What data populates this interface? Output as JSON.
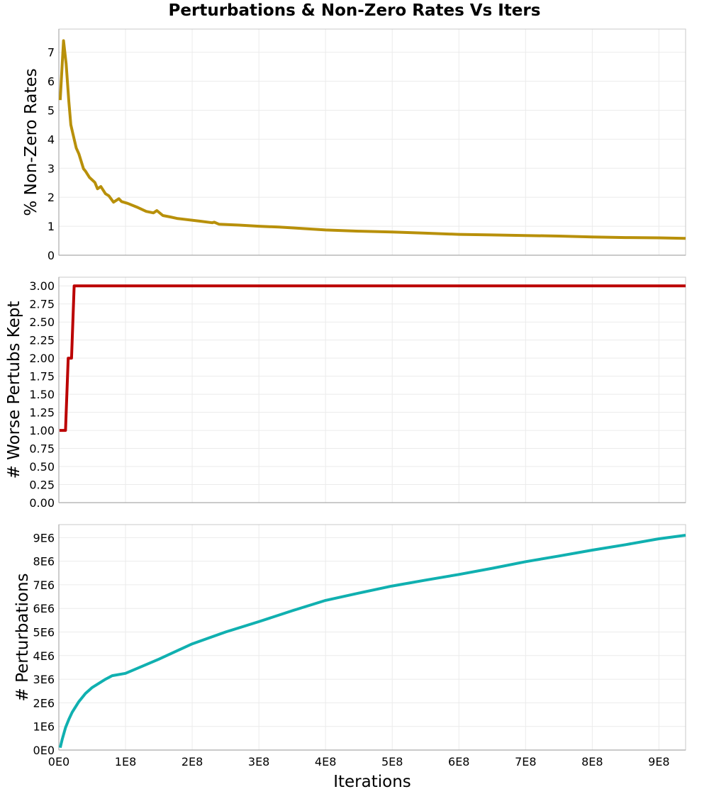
{
  "figure": {
    "title": "Perturbations & Non-Zero Rates Vs Iters",
    "xlabel": "Iterations",
    "x_tick_labels": [
      "0E0",
      "1E8",
      "2E8",
      "3E8",
      "4E8",
      "5E8",
      "6E8",
      "7E8",
      "8E8",
      "9E8"
    ]
  },
  "chart_data": [
    {
      "type": "line",
      "title": "",
      "xlabel": "",
      "ylabel": "% Non-Zero Rates",
      "color": "#B8900A",
      "xlim": [
        0,
        940000000.0
      ],
      "ylim": [
        0,
        7.8
      ],
      "yticks": [
        0,
        1,
        2,
        3,
        4,
        5,
        6,
        7
      ],
      "ytick_labels": [
        "0",
        "1",
        "2",
        "3",
        "4",
        "5",
        "6",
        "7"
      ],
      "grid": true,
      "x": [
        2000000.0,
        7000000.0,
        11000000.0,
        15000000.0,
        18000000.0,
        21000000.0,
        26000000.0,
        30000000.0,
        37000000.0,
        40000000.0,
        46000000.0,
        54000000.0,
        58000000.0,
        63000000.0,
        70000000.0,
        75000000.0,
        82000000.0,
        90000000.0,
        94000000.0,
        103000000.0,
        117000000.0,
        131000000.0,
        142000000.0,
        147000000.0,
        156000000.0,
        167000000.0,
        177000000.0,
        213000000.0,
        230000000.0,
        233000000.0,
        240000000.0,
        270000000.0,
        300000000.0,
        330000000.0,
        360000000.0,
        400000000.0,
        450000000.0,
        500000000.0,
        550000000.0,
        600000000.0,
        650000000.0,
        700000000.0,
        750000000.0,
        800000000.0,
        850000000.0,
        900000000.0,
        940000000.0
      ],
      "y": [
        5.35,
        7.4,
        6.6,
        5.3,
        4.5,
        4.2,
        3.7,
        3.5,
        2.98,
        2.9,
        2.68,
        2.51,
        2.29,
        2.37,
        2.12,
        2.05,
        1.83,
        1.95,
        1.85,
        1.79,
        1.66,
        1.51,
        1.46,
        1.54,
        1.37,
        1.32,
        1.27,
        1.17,
        1.12,
        1.14,
        1.07,
        1.04,
        1.0,
        0.97,
        0.93,
        0.87,
        0.83,
        0.8,
        0.76,
        0.72,
        0.7,
        0.68,
        0.66,
        0.63,
        0.61,
        0.6,
        0.58
      ]
    },
    {
      "type": "line",
      "title": "",
      "xlabel": "",
      "ylabel": "# Worse Pertubs Kept",
      "color": "#BB0000",
      "xlim": [
        0,
        940000000.0
      ],
      "ylim": [
        0,
        3.12
      ],
      "yticks": [
        0,
        0.25,
        0.5,
        0.75,
        1.0,
        1.25,
        1.5,
        1.75,
        2.0,
        2.25,
        2.5,
        2.75,
        3.0
      ],
      "ytick_labels": [
        "0.00",
        "0.25",
        "0.50",
        "0.75",
        "1.00",
        "1.25",
        "1.50",
        "1.75",
        "2.00",
        "2.25",
        "2.50",
        "2.75",
        "3.00"
      ],
      "grid": true,
      "x": [
        1000000.0,
        10000000.0,
        14000000.0,
        19000000.0,
        23000000.0,
        940000000.0
      ],
      "y": [
        1,
        1,
        2,
        2,
        3,
        3
      ]
    },
    {
      "type": "line",
      "title": "",
      "xlabel": "Iterations",
      "ylabel": "# Perturbations",
      "color": "#10B0B0",
      "xlim": [
        0,
        940000000.0
      ],
      "ylim": [
        0,
        9550000.0
      ],
      "yticks": [
        0,
        1000000.0,
        2000000.0,
        3000000.0,
        4000000.0,
        5000000.0,
        6000000.0,
        7000000.0,
        8000000.0,
        9000000.0
      ],
      "ytick_labels": [
        "0E0",
        "1E6",
        "2E6",
        "3E6",
        "4E6",
        "5E6",
        "6E6",
        "7E6",
        "8E6",
        "9E6"
      ],
      "grid": true,
      "x": [
        2000000.0,
        5000000.0,
        10000000.0,
        15000000.0,
        20000000.0,
        30000000.0,
        40000000.0,
        50000000.0,
        70000000.0,
        80000000.0,
        100000000.0,
        125000000.0,
        150000000.0,
        200000000.0,
        250000000.0,
        300000000.0,
        350000000.0,
        400000000.0,
        450000000.0,
        500000000.0,
        550000000.0,
        600000000.0,
        650000000.0,
        700000000.0,
        750000000.0,
        800000000.0,
        850000000.0,
        900000000.0,
        940000000.0
      ],
      "y": [
        100000.0,
        450000.0,
        950000.0,
        1300000.0,
        1600000.0,
        2050000.0,
        2400000.0,
        2650000.0,
        3000000.0,
        3150000.0,
        3250000.0,
        3550000.0,
        3850000.0,
        4500000.0,
        5000000.0,
        5440000.0,
        5900000.0,
        6340000.0,
        6650000.0,
        6950000.0,
        7200000.0,
        7440000.0,
        7700000.0,
        7980000.0,
        8220000.0,
        8470000.0,
        8700000.0,
        8950000.0,
        9100000.0
      ]
    }
  ]
}
